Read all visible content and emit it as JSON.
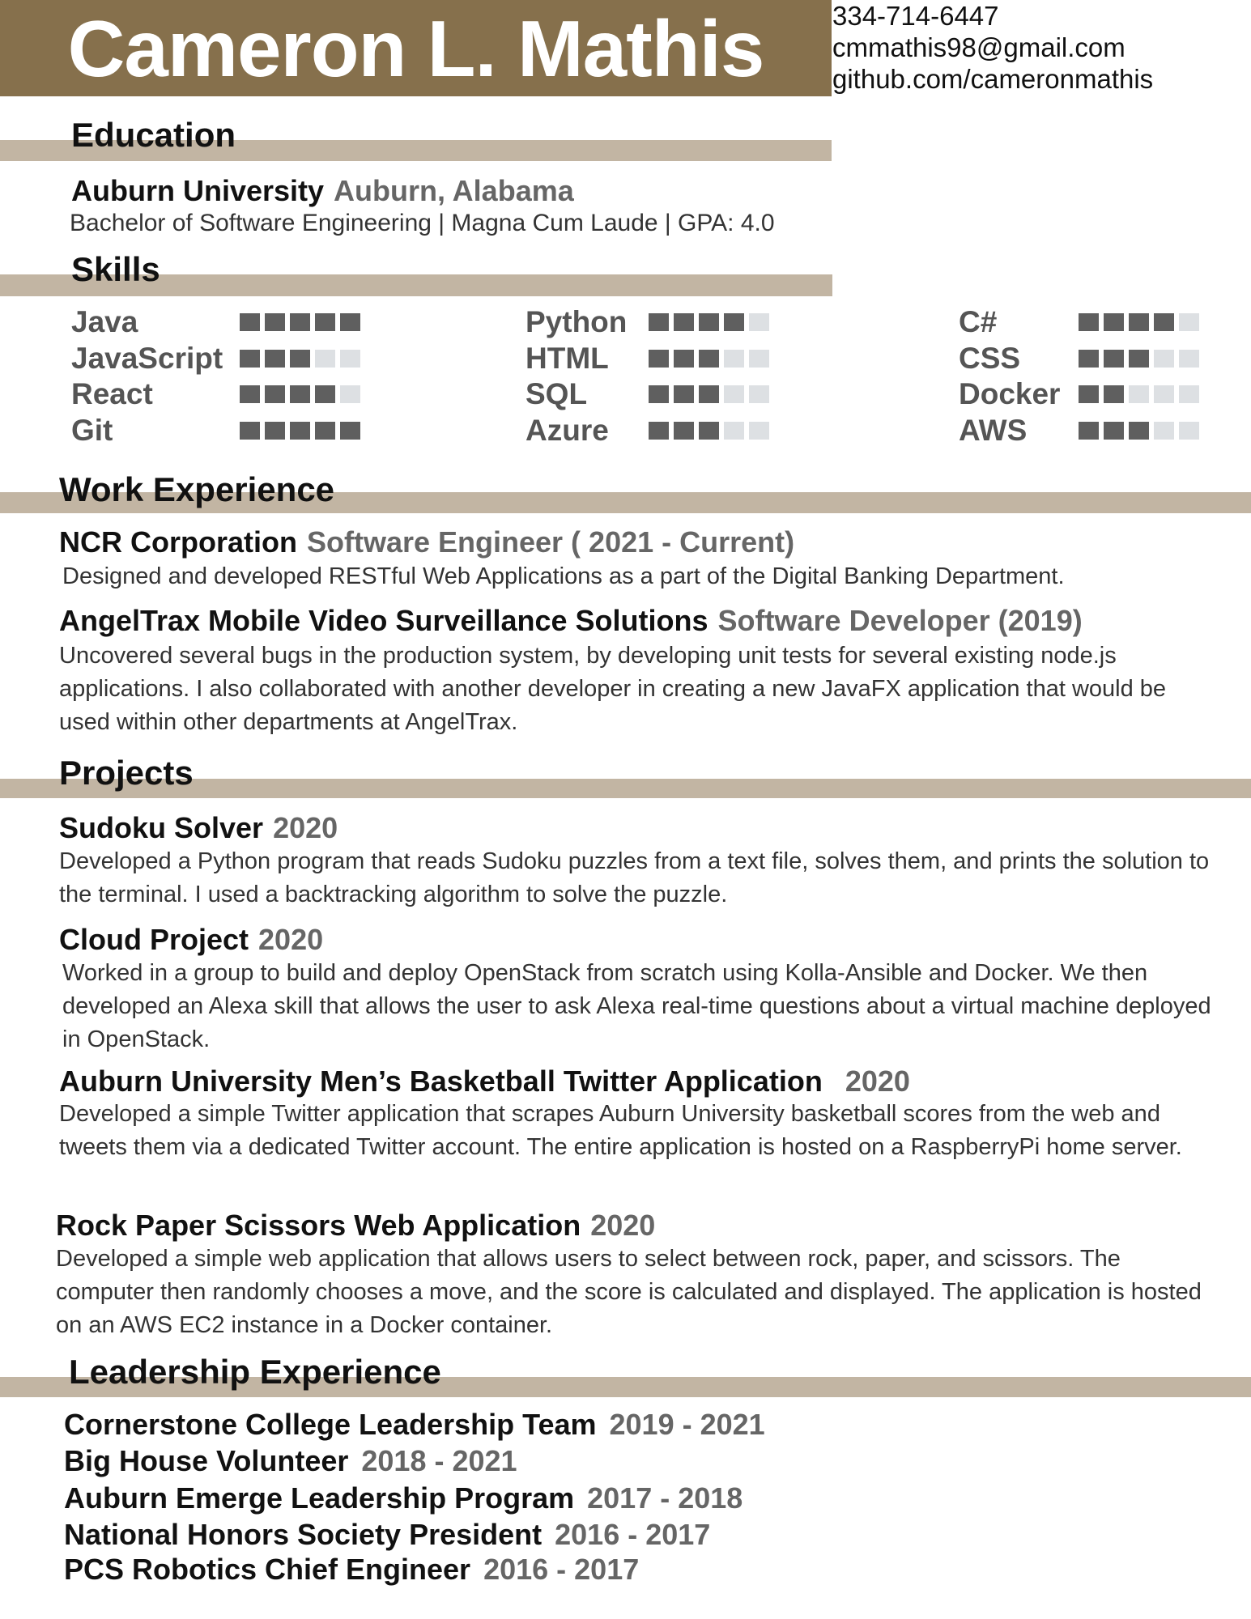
{
  "header": {
    "name": "Cameron L. Mathis",
    "phone": "334-714-6447",
    "email": "cmmathis98@gmail.com",
    "github": "github.com/cameronmathis"
  },
  "education": {
    "heading": "Education",
    "school": "Auburn University",
    "location": "Auburn, Alabama",
    "details": "Bachelor of Software Engineering | Magna Cum Laude | GPA: 4.0"
  },
  "skills": {
    "heading": "Skills",
    "scale": 5,
    "items": [
      {
        "name": "Java",
        "level": 5
      },
      {
        "name": "JavaScript",
        "level": 3
      },
      {
        "name": "React",
        "level": 4
      },
      {
        "name": "Git",
        "level": 5
      },
      {
        "name": "Python",
        "level": 4
      },
      {
        "name": "HTML",
        "level": 3
      },
      {
        "name": "SQL",
        "level": 3
      },
      {
        "name": "Azure",
        "level": 3
      },
      {
        "name": "C#",
        "level": 4
      },
      {
        "name": "CSS",
        "level": 3
      },
      {
        "name": "Docker",
        "level": 2
      },
      {
        "name": "AWS",
        "level": 3
      }
    ]
  },
  "work": {
    "heading": "Work Experience",
    "jobs": [
      {
        "company": "NCR Corporation",
        "role": "Software Engineer ( 2021 - Current)",
        "description": "Designed and developed RESTful Web Applications as a part of the Digital Banking Department."
      },
      {
        "company": "AngelTrax Mobile Video Surveillance Solutions",
        "role": "Software Developer (2019)",
        "description": "Uncovered several bugs in the production system, by developing unit tests for several existing node.js applications. I also collaborated with another developer in creating a new JavaFX application that would be used within other departments at AngelTrax."
      }
    ]
  },
  "projects": {
    "heading": "Projects",
    "items": [
      {
        "title": "Sudoku Solver",
        "year": "2020",
        "description": "Developed a Python program that reads Sudoku puzzles from a text file, solves them, and prints the solution to the terminal. I used a backtracking algorithm to solve the puzzle."
      },
      {
        "title": "Cloud Project",
        "year": "2020",
        "description": "Worked in a group to build and deploy OpenStack from scratch using Kolla-Ansible and Docker. We then developed an Alexa skill that allows the user to ask Alexa real-time questions about a virtual machine deployed in OpenStack."
      },
      {
        "title": "Auburn University Men’s Basketball Twitter Application",
        "year": "2020",
        "description": "Developed a simple Twitter application that scrapes Auburn University basketball scores from the web and tweets them via a dedicated Twitter account. The entire application is hosted on a RaspberryPi home server."
      },
      {
        "title": "Rock Paper Scissors Web Application",
        "year": "2020",
        "description": "Developed a simple web application that allows users to select between rock, paper, and scissors. The computer then randomly chooses a move, and the score is calculated and displayed. The application is hosted on an AWS EC2 instance in a Docker container."
      }
    ]
  },
  "leadership": {
    "heading": "Leadership Experience",
    "items": [
      {
        "title": "Cornerstone College Leadership Team",
        "years": "2019 - 2021"
      },
      {
        "title": "Big House Volunteer",
        "years": "2018 - 2021"
      },
      {
        "title": "Auburn Emerge Leadership Program",
        "years": "2017 - 2018"
      },
      {
        "title": "National Honors Society President",
        "years": "2016 - 2017"
      },
      {
        "title": "PCS Robotics Chief Engineer",
        "years": "2016 - 2017"
      }
    ]
  }
}
